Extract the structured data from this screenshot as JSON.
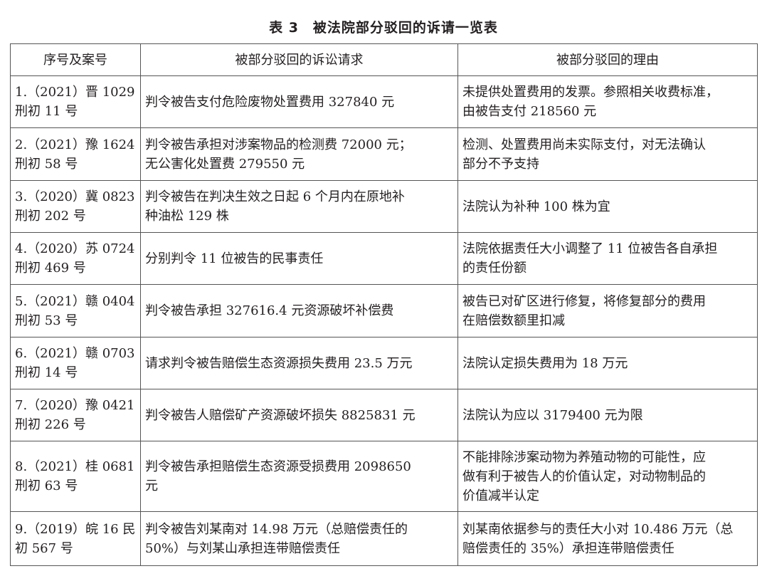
{
  "title": "表 3　被法院部分驳回的诉请一览表",
  "table": {
    "headers": [
      "序号及案号",
      "被部分驳回的诉讼请求",
      "被部分驳回的理由"
    ],
    "rows": [
      {
        "case": [
          "1.（2021）晋 1029",
          "刑初 11 号"
        ],
        "claim": [
          "判令被告支付危险废物处置费用 327840 元"
        ],
        "reason": [
          "未提供处置费用的发票。参照相关收费标准，",
          "由被告支付 218560 元"
        ]
      },
      {
        "case": [
          "2.（2021）豫 1624",
          "刑初 58 号"
        ],
        "claim": [
          "判令被告承担对涉案物品的检测费 72000 元；",
          "无公害化处置费 279550 元"
        ],
        "reason": [
          "检测、处置费用尚未实际支付，对无法确认",
          "部分不予支持"
        ]
      },
      {
        "case": [
          "3.（2020）冀 0823",
          "刑初 202 号"
        ],
        "claim": [
          "判令被告在判决生效之日起 6 个月内在原地补",
          "种油松 129 株"
        ],
        "reason": [
          "法院认为补种 100 株为宜"
        ]
      },
      {
        "case": [
          "4.（2020）苏 0724",
          "刑初 469 号"
        ],
        "claim": [
          "分别判令 11 位被告的民事责任"
        ],
        "reason": [
          "法院依据责任大小调整了 11 位被告各自承担",
          "的责任份额"
        ]
      },
      {
        "case": [
          "5.（2021）赣 0404",
          "刑初 53 号"
        ],
        "claim": [
          "判令被告承担 327616.4 元资源破坏补偿费"
        ],
        "reason": [
          "被告已对矿区进行修复，将修复部分的费用",
          "在赔偿数额里扣减"
        ]
      },
      {
        "case": [
          "6.（2021）赣 0703",
          "刑初 14 号"
        ],
        "claim": [
          "请求判令被告赔偿生态资源损失费用 23.5 万元"
        ],
        "reason": [
          "法院认定损失费用为 18 万元"
        ]
      },
      {
        "case": [
          "7.（2020）豫 0421",
          "刑初 226 号"
        ],
        "claim": [
          "判令被告人赔偿矿产资源破坏损失 8825831 元"
        ],
        "reason": [
          "法院认为应以 3179400 元为限"
        ]
      },
      {
        "case": [
          "8.（2021）桂 0681",
          "刑初 63 号"
        ],
        "claim": [
          "判令被告承担赔偿生态资源受损费用 2098650",
          "元"
        ],
        "reason": [
          "不能排除涉案动物为养殖动物的可能性，应",
          "做有利于被告人的价值认定，对动物制品的",
          "价值减半认定"
        ]
      },
      {
        "case": [
          "9.（2019）皖 16 民",
          "初 567 号"
        ],
        "claim": [
          "判令被告刘某南对 14.98 万元（总赔偿责任的",
          "50%）与刘某山承担连带赔偿责任"
        ],
        "reason": [
          "刘某南依据参与的责任大小对 10.486 万元（总",
          "赔偿责任的 35%）承担连带赔偿责任"
        ]
      }
    ]
  }
}
